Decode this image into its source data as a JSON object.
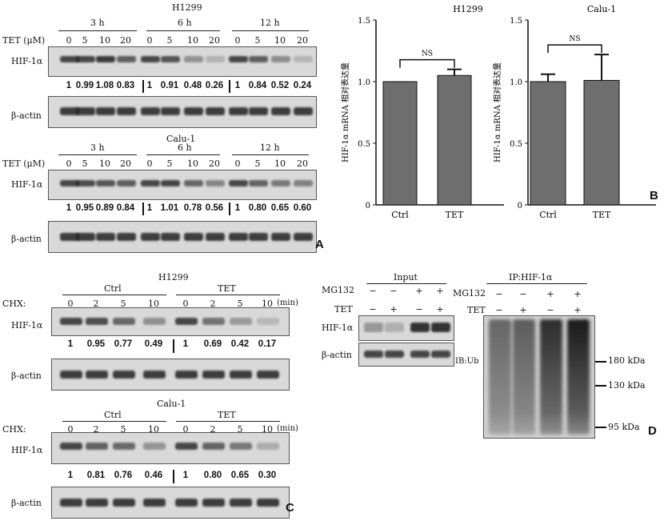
{
  "panelA": {
    "letter": "A",
    "h1299": {
      "title": "H1299",
      "row_label": "TET (μM)",
      "groups": [
        "3 h",
        "6 h",
        "12 h"
      ],
      "doses": [
        "0",
        "5",
        "10",
        "20",
        "0",
        "5",
        "10",
        "20",
        "0",
        "5",
        "10",
        "20"
      ],
      "hif_label": "HIF-1α",
      "actin_label": "β-actin",
      "values": [
        "1",
        "0.99",
        "1.08",
        "0.83",
        "1",
        "0.91",
        "0.48",
        "0.26",
        "1",
        "0.84",
        "0.52",
        "0.24"
      ]
    },
    "calu1": {
      "title": "Calu-1",
      "row_label": "TET (μM)",
      "groups": [
        "3 h",
        "6 h",
        "12 h"
      ],
      "doses": [
        "0",
        "5",
        "10",
        "20",
        "0",
        "5",
        "10",
        "20",
        "0",
        "5",
        "10",
        "20"
      ],
      "hif_label": "HIF-1α",
      "actin_label": "β-actin",
      "values": [
        "1",
        "0.95",
        "0.89",
        "0.84",
        "1",
        "1.01",
        "0.78",
        "0.56",
        "1",
        "0.80",
        "0.65",
        "0.60"
      ]
    }
  },
  "panelB": {
    "letter": "B",
    "chart_data": [
      {
        "type": "bar",
        "title": "H1299",
        "ylabel": "HIF-1α mRNA 相对表达量",
        "categories": [
          "Ctrl",
          "TET"
        ],
        "values": [
          1.0,
          1.05
        ],
        "errors": [
          0.0,
          0.05
        ],
        "ylim": [
          0,
          1.5
        ],
        "yticks": [
          "0",
          "0.5",
          "1.0",
          "1.5"
        ],
        "annotation": "NS",
        "bar_color": "#6e6e6e"
      },
      {
        "type": "bar",
        "title": "Calu-1",
        "ylabel": "HIF-1α mRNA 相对表达量",
        "categories": [
          "Ctrl",
          "TET"
        ],
        "values": [
          1.0,
          1.01
        ],
        "errors": [
          0.06,
          0.21
        ],
        "ylim": [
          0,
          1.5
        ],
        "yticks": [
          "0",
          "0.5",
          "1.0",
          "1.5"
        ],
        "annotation": "NS",
        "bar_color": "#6e6e6e"
      }
    ]
  },
  "panelC": {
    "letter": "C",
    "h1299": {
      "title": "H1299",
      "row_label": "CHX:",
      "groups": [
        "Ctrl",
        "TET"
      ],
      "times": [
        "0",
        "2",
        "5",
        "10",
        "0",
        "2",
        "5",
        "10"
      ],
      "unit": "(min)",
      "hif_label": "HIF-1α",
      "actin_label": "β-actin",
      "values": [
        "1",
        "0.95",
        "0.77",
        "0.49",
        "1",
        "0.69",
        "0.42",
        "0.17"
      ]
    },
    "calu1": {
      "title": "Calu-1",
      "row_label": "CHX:",
      "groups": [
        "Ctrl",
        "TET"
      ],
      "times": [
        "0",
        "2",
        "5",
        "10",
        "0",
        "2",
        "5",
        "10"
      ],
      "unit": "(min)",
      "hif_label": "HIF-1α",
      "actin_label": "β-actin",
      "values": [
        "1",
        "0.81",
        "0.76",
        "0.46",
        "1",
        "0.80",
        "0.65",
        "0.30"
      ]
    }
  },
  "panelD": {
    "letter": "D",
    "input_title": "Input",
    "ip_title": "IP:HIF-1α",
    "mg132_label": "MG132",
    "tet_label": "TET",
    "mg132": [
      "−",
      "−",
      "+",
      "+"
    ],
    "tet": [
      "−",
      "+",
      "−",
      "+"
    ],
    "hif_label": "HIF-1α",
    "actin_label": "β-actin",
    "ib_label": "IB:Ub",
    "markers": [
      "180 kDa",
      "130 kDa",
      "95 kDa"
    ]
  }
}
